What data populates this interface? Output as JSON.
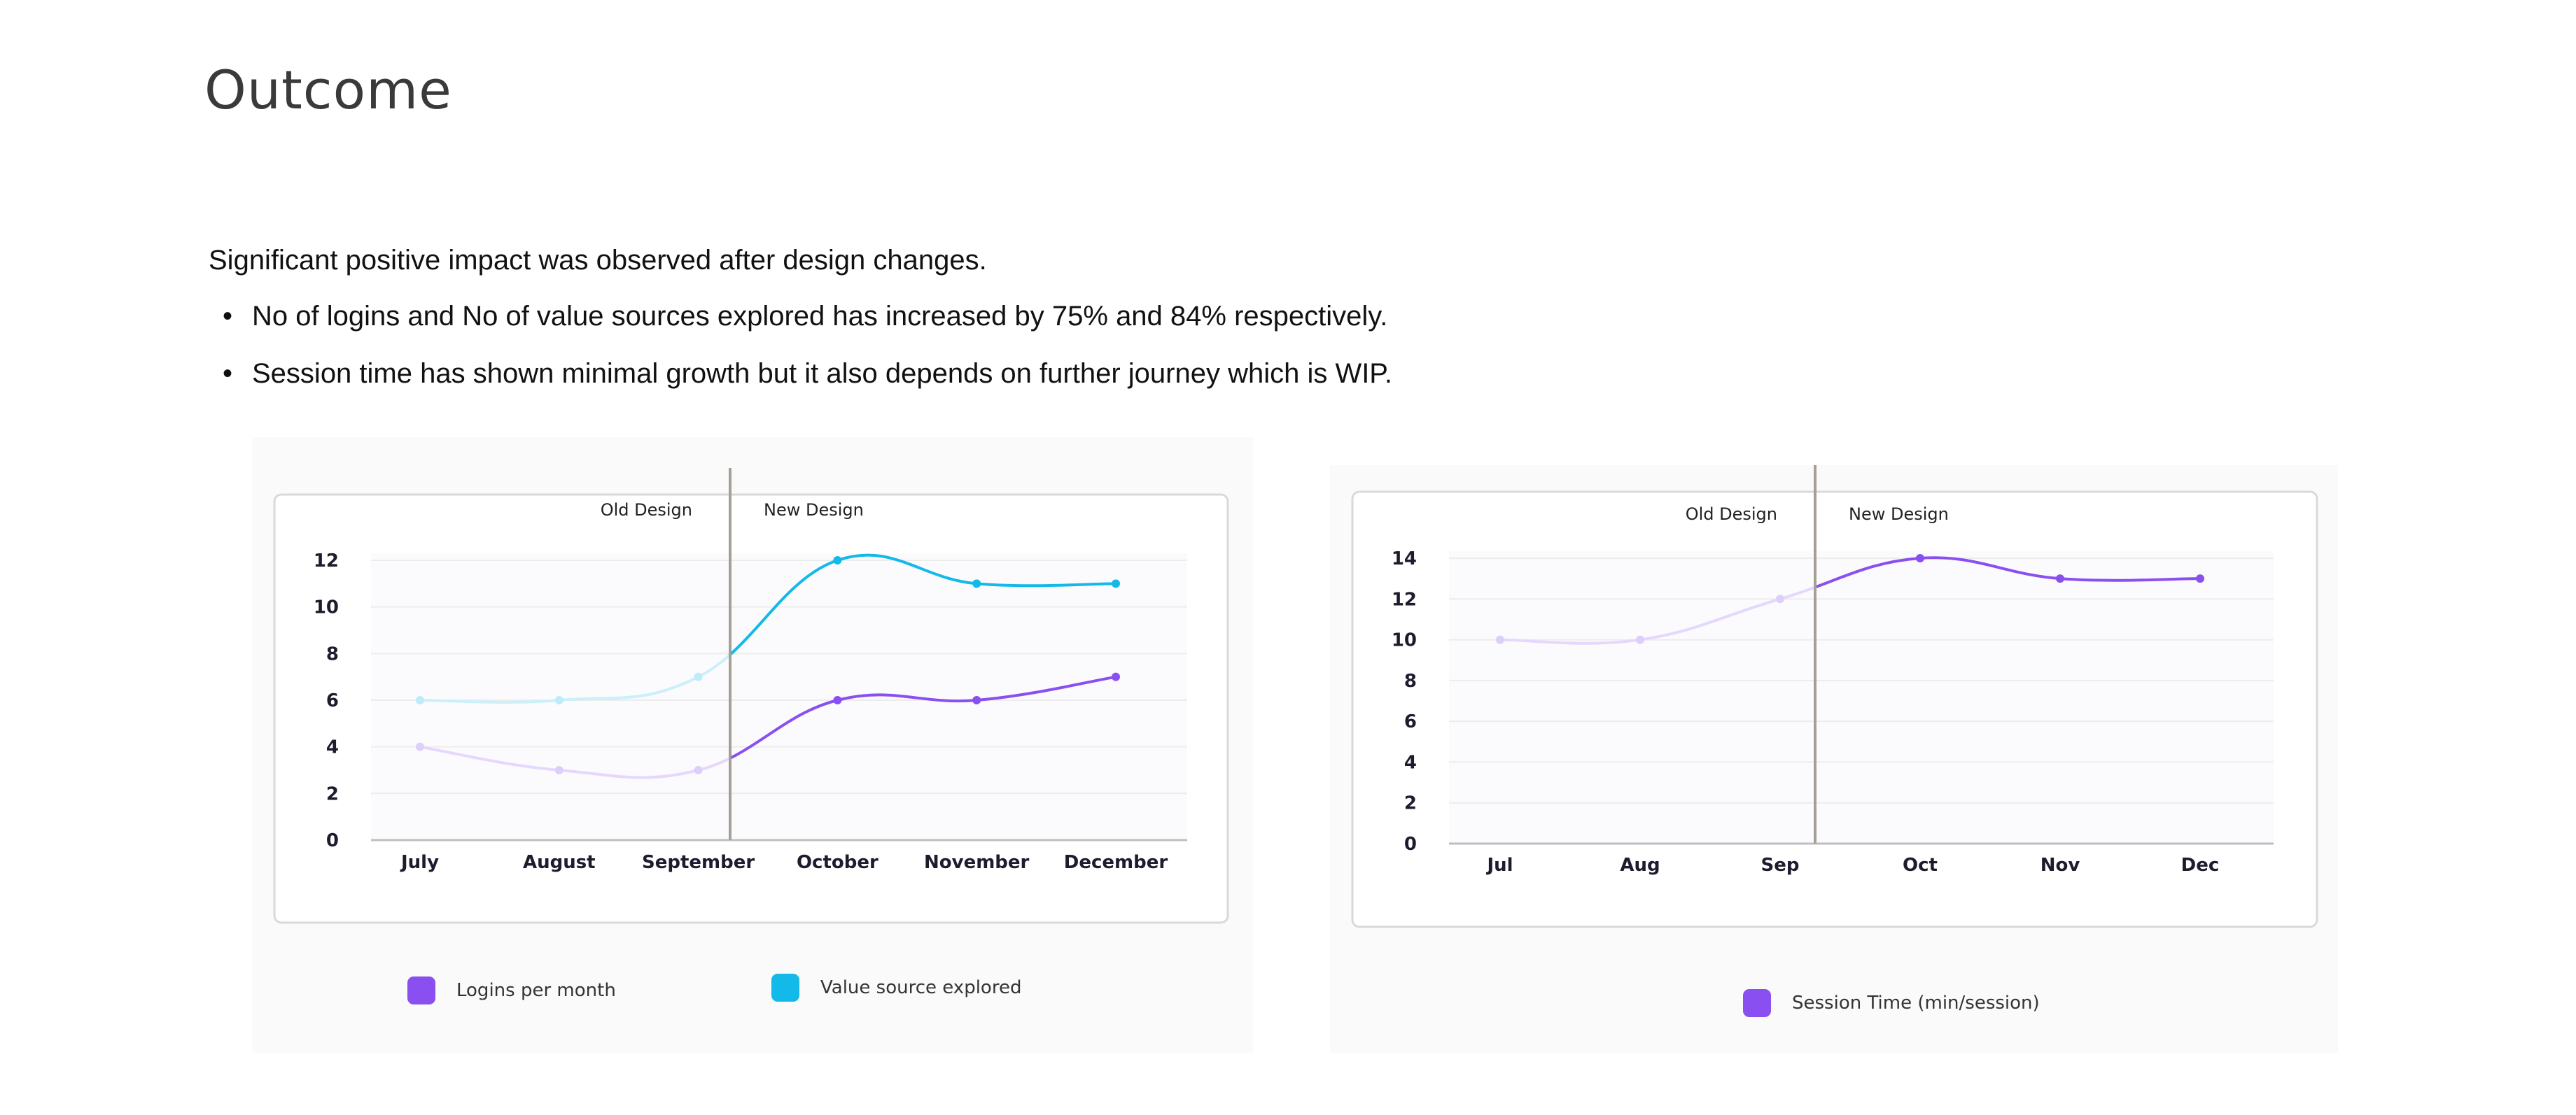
{
  "page": {
    "title": "Outcome",
    "intro": "Significant positive impact was observed after design changes.",
    "bullets": [
      "No of logins and No of value sources explored has increased by 75% and 84% respectively.",
      "Session time has shown minimal growth but it also depends on further journey which is WIP."
    ]
  },
  "colors": {
    "purple": "#8a4ff0",
    "cyan": "#13b9e8",
    "divider": "#a59f96"
  },
  "chart_data": [
    {
      "type": "line",
      "categories": [
        "July",
        "August",
        "September",
        "October",
        "November",
        "December"
      ],
      "ylim": [
        0,
        12
      ],
      "yticks": [
        0,
        2,
        4,
        6,
        8,
        10,
        12
      ],
      "phase_labels": [
        "Old Design",
        "New Design"
      ],
      "series": [
        {
          "name": "Logins per month",
          "color": "#8a4ff0",
          "values": [
            4,
            3,
            3,
            6,
            6,
            7
          ]
        },
        {
          "name": "Value source explored",
          "color": "#13b9e8",
          "values": [
            6,
            6,
            7,
            12,
            11,
            11
          ]
        }
      ],
      "legend": [
        "Logins per month",
        "Value source explored"
      ]
    },
    {
      "type": "line",
      "categories": [
        "Jul",
        "Aug",
        "Sep",
        "Oct",
        "Nov",
        "Dec"
      ],
      "ylim": [
        0,
        14
      ],
      "yticks": [
        0,
        2,
        4,
        6,
        8,
        10,
        12,
        14
      ],
      "phase_labels": [
        "Old Design",
        "New Design"
      ],
      "series": [
        {
          "name": "Session Time (min/session)",
          "color": "#8a4ff0",
          "values": [
            10,
            10,
            12,
            14,
            13,
            13
          ]
        }
      ],
      "legend": [
        "Session Time (min/session)"
      ]
    }
  ]
}
